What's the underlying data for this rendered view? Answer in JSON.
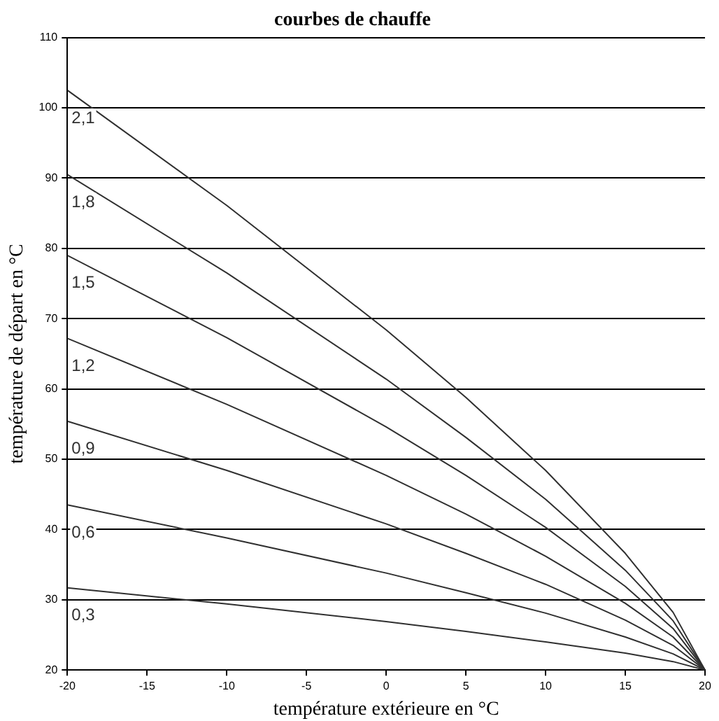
{
  "chart_data": {
    "type": "line",
    "title": "courbes de chauffe",
    "xlabel": "température extérieure en °C",
    "ylabel": "température de départ en °C",
    "x": [
      -20,
      -10,
      0,
      5,
      10,
      15,
      18,
      20
    ],
    "series": [
      {
        "name": "0,3",
        "color": "#303030",
        "values": [
          31.7,
          29.4,
          26.9,
          25.5,
          24.0,
          22.4,
          21.2,
          20
        ]
      },
      {
        "name": "0,6",
        "color": "#303030",
        "values": [
          43.5,
          38.8,
          33.8,
          31.0,
          28.1,
          24.7,
          22.3,
          20
        ]
      },
      {
        "name": "0,9",
        "color": "#303030",
        "values": [
          55.4,
          48.4,
          40.8,
          36.6,
          32.2,
          27.1,
          23.5,
          20
        ]
      },
      {
        "name": "1,2",
        "color": "#303030",
        "values": [
          67.2,
          57.8,
          47.7,
          42.2,
          36.2,
          29.5,
          24.7,
          20
        ]
      },
      {
        "name": "1,5",
        "color": "#303030",
        "values": [
          79,
          67.3,
          54.6,
          47.7,
          40.3,
          31.9,
          25.9,
          20
        ]
      },
      {
        "name": "1,8",
        "color": "#303030",
        "values": [
          90.5,
          76.5,
          61.4,
          53.1,
          44.3,
          34.2,
          27.0,
          20
        ]
      },
      {
        "name": "2,1",
        "color": "#303030",
        "values": [
          102.5,
          86.1,
          68.4,
          58.8,
          48.4,
          36.6,
          28.2,
          20
        ]
      }
    ],
    "xlim": [
      -20,
      20
    ],
    "xticks": [
      -20,
      -15,
      -10,
      -5,
      0,
      5,
      10,
      15,
      20
    ],
    "ylim": [
      20,
      110
    ],
    "yticks": [
      20,
      30,
      40,
      50,
      60,
      70,
      80,
      90,
      100,
      110
    ],
    "grid": "y",
    "legend": false,
    "marker": "none",
    "line_style": "solid"
  }
}
